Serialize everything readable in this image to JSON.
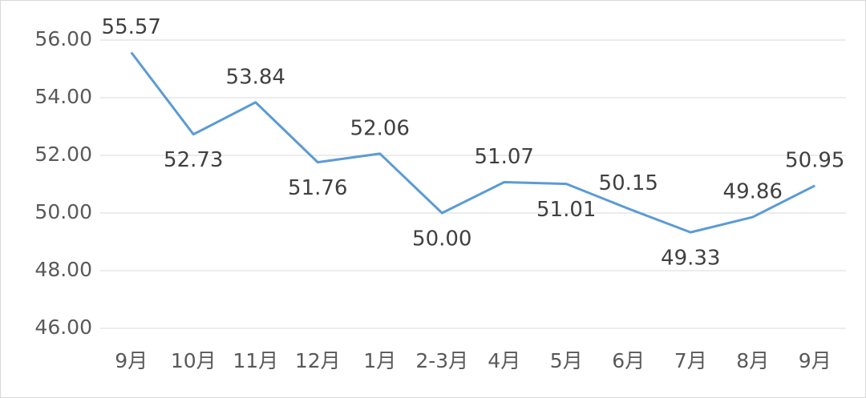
{
  "chart_data": {
    "type": "line",
    "categories": [
      "9月",
      "10月",
      "11月",
      "12月",
      "1月",
      "2-3月",
      "4月",
      "5月",
      "6月",
      "7月",
      "8月",
      "9月"
    ],
    "series": [
      {
        "color": "#5b9bd5",
        "values": [
          55.57,
          52.73,
          53.84,
          51.76,
          52.06,
          50.0,
          51.07,
          51.01,
          50.15,
          49.33,
          49.86,
          50.95
        ],
        "value_labels": [
          "55.57",
          "52.73",
          "53.84",
          "51.76",
          "52.06",
          "50.00",
          "51.07",
          "51.01",
          "50.15",
          "49.33",
          "49.86",
          "50.95"
        ]
      }
    ],
    "ylim": [
      46,
      56
    ],
    "yticks": [
      {
        "value": 46,
        "label": "46.00"
      },
      {
        "value": 48,
        "label": "48.00"
      },
      {
        "value": 50,
        "label": "50.00"
      },
      {
        "value": 52,
        "label": "52.00"
      },
      {
        "value": 54,
        "label": "54.00"
      },
      {
        "value": 56,
        "label": "56.00"
      }
    ],
    "grid": true
  }
}
